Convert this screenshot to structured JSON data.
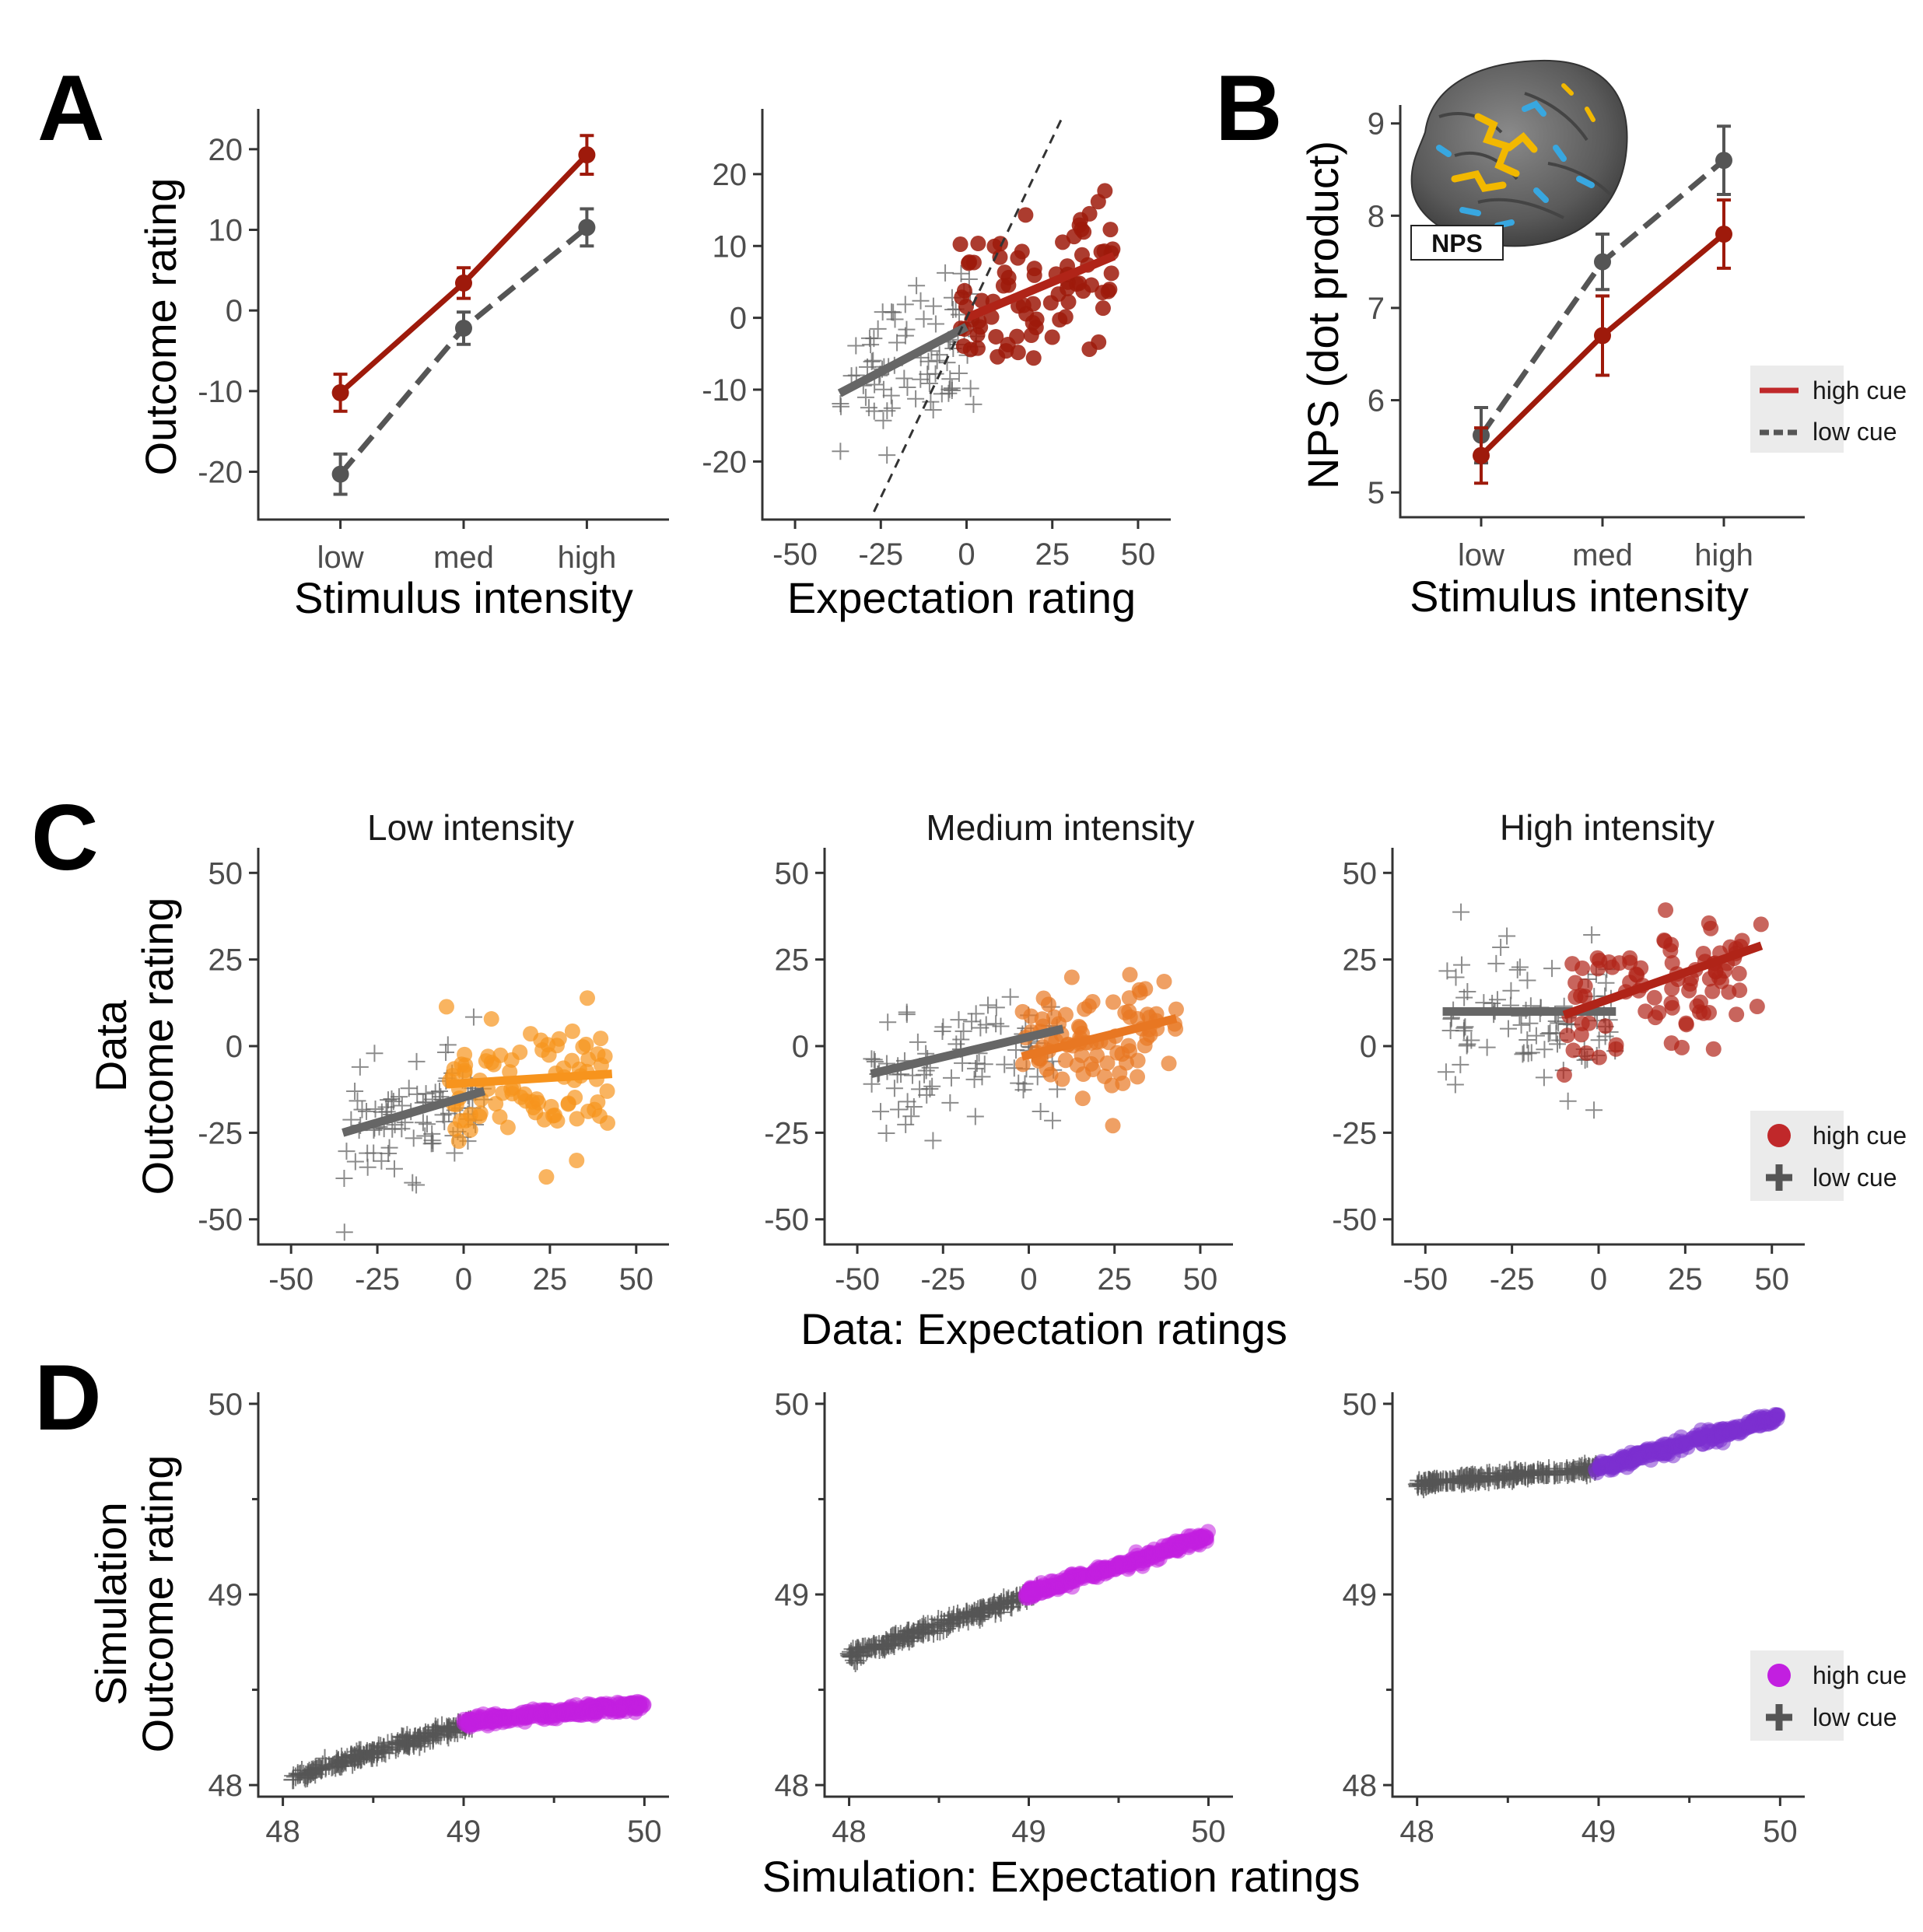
{
  "figure": {
    "letters": [
      "A",
      "B",
      "C",
      "D"
    ],
    "inset_label": "NPS"
  },
  "colors": {
    "high_cue_line": "#9e1a0b",
    "low_cue": "#555555",
    "orange": "#f7941d",
    "dark_orange": "#e87722",
    "red": "#b02418",
    "purple": "#c21fe0",
    "violet": "#7b2fd0",
    "legend_red": "#c0282a"
  },
  "legend": {
    "high_cue": "high cue",
    "low_cue": "low cue"
  },
  "chart_data": [
    {
      "id": "A1",
      "type": "line",
      "xlabel": "Stimulus intensity",
      "ylabel": "Outcome rating",
      "categories": [
        "low",
        "med",
        "high"
      ],
      "ylim": [
        -24,
        25
      ],
      "yticks": [
        20,
        10,
        0,
        -10,
        -20
      ],
      "series": [
        {
          "values": [
            -10.2,
            3.4,
            19.3
          ],
          "err": [
            2.3,
            1.9,
            2.4
          ]
        },
        {
          "values": [
            -20.3,
            -2.2,
            10.3
          ],
          "err": [
            2.5,
            2.0,
            2.3
          ]
        }
      ]
    },
    {
      "id": "A2",
      "type": "scatter",
      "xlabel": "Expectation rating",
      "ylabel": "",
      "xlim": [
        -55,
        55
      ],
      "xticks": [
        -50,
        -25,
        0,
        25,
        50
      ],
      "ylim": [
        -27,
        28
      ],
      "yticks": [
        20,
        10,
        0,
        -10,
        -20
      ],
      "high_cue": {
        "x_range": [
          -2,
          43
        ],
        "center": [
          15,
          3
        ],
        "n": 85,
        "slope": 0.2,
        "sd": 5
      },
      "low_cue": {
        "x_range": [
          -37,
          3
        ],
        "center": [
          -15,
          -5
        ],
        "n": 85,
        "slope": 0.25,
        "sd": 5
      },
      "identity_line": [
        [
          -27,
          -27
        ],
        [
          28,
          28
        ]
      ]
    },
    {
      "id": "B",
      "type": "line",
      "xlabel": "Stimulus intensity",
      "ylabel": "NPS (dot product)",
      "categories": [
        "low",
        "med",
        "high"
      ],
      "ylim": [
        4.9,
        9.2
      ],
      "yticks": [
        9,
        8,
        7,
        6,
        5
      ],
      "series": [
        {
          "name": "high cue",
          "values": [
            5.4,
            6.7,
            7.8
          ],
          "err": [
            0.3,
            0.43,
            0.37
          ]
        },
        {
          "name": "low cue",
          "values": [
            5.62,
            7.5,
            8.6
          ],
          "err": [
            0.3,
            0.3,
            0.37
          ]
        }
      ]
    },
    {
      "id": "C1",
      "type": "scatter",
      "title": "Low intensity",
      "ylabel": "Outcome rating",
      "row_label": "Data",
      "xlim": [
        -55,
        55
      ],
      "xticks": [
        -50,
        -25,
        0,
        25,
        50
      ],
      "ylim": [
        -55,
        55
      ],
      "yticks": [
        50,
        25,
        0,
        -25,
        -50
      ],
      "high_cue": {
        "x_range": [
          -5,
          43
        ],
        "center": [
          18,
          -12
        ],
        "n": 90,
        "slope": 0.05,
        "sd": 9
      },
      "low_cue": {
        "x_range": [
          -35,
          6
        ],
        "center": [
          -15,
          -20
        ],
        "n": 90,
        "slope": 0.3,
        "sd": 8
      },
      "fit_high": [
        [
          -5,
          -11
        ],
        [
          43,
          -8
        ]
      ],
      "fit_low": [
        [
          -35,
          -25
        ],
        [
          6,
          -13
        ]
      ]
    },
    {
      "id": "C2",
      "type": "scatter",
      "title": "Medium intensity",
      "xlim": [
        -55,
        55
      ],
      "xticks": [
        -50,
        -25,
        0,
        25,
        50
      ],
      "ylim": [
        -55,
        55
      ],
      "yticks": [
        50,
        25,
        0,
        -25,
        -50
      ],
      "high_cue": {
        "x_range": [
          -2,
          43
        ],
        "center": [
          20,
          2
        ],
        "n": 90,
        "slope": 0.15,
        "sd": 9
      },
      "low_cue": {
        "x_range": [
          -46,
          10
        ],
        "center": [
          -18,
          -6
        ],
        "n": 90,
        "slope": 0.2,
        "sd": 8
      },
      "fit_high": [
        [
          -2,
          -3
        ],
        [
          43,
          8
        ]
      ],
      "fit_low": [
        [
          -46,
          -8
        ],
        [
          10,
          5
        ]
      ]
    },
    {
      "id": "C3",
      "type": "scatter",
      "title": "High intensity",
      "xlim": [
        -55,
        55
      ],
      "xticks": [
        -50,
        -25,
        0,
        25,
        50
      ],
      "ylim": [
        -55,
        55
      ],
      "yticks": [
        50,
        25,
        0,
        -25,
        -50
      ],
      "high_cue": {
        "x_range": [
          -10,
          47
        ],
        "center": [
          20,
          17
        ],
        "n": 90,
        "slope": 0.3,
        "sd": 9
      },
      "low_cue": {
        "x_range": [
          -45,
          5
        ],
        "center": [
          -15,
          8
        ],
        "n": 90,
        "slope": 0.0,
        "sd": 10
      },
      "fit_high": [
        [
          -10,
          9
        ],
        [
          47,
          29
        ]
      ],
      "fit_low": [
        [
          -45,
          10
        ],
        [
          5,
          10
        ]
      ]
    },
    {
      "id": "D1",
      "type": "scatter",
      "ylabel": "Outcome rating",
      "row_label": "Simulation",
      "xlim": [
        47.95,
        50.05
      ],
      "xticks": [
        48,
        49,
        50
      ],
      "ylim": [
        47.98,
        50.02
      ],
      "yticks": [
        50,
        49,
        48
      ],
      "high_cue": {
        "x_range": [
          49.0,
          50.0
        ],
        "n": 260,
        "line": [
          [
            49.0,
            48.33
          ],
          [
            50.0,
            48.42
          ]
        ],
        "sd": 0.015
      },
      "low_cue": {
        "x_range": [
          48.05,
          49.05
        ],
        "n": 260,
        "line": [
          [
            48.05,
            48.04
          ],
          [
            49.05,
            48.33
          ]
        ],
        "sd": 0.015
      }
    },
    {
      "id": "D2",
      "type": "scatter",
      "xlim": [
        47.95,
        50.05
      ],
      "xticks": [
        48,
        49,
        50
      ],
      "ylim": [
        47.98,
        50.02
      ],
      "yticks": [
        50,
        49,
        48
      ],
      "high_cue": {
        "x_range": [
          48.98,
          50.0
        ],
        "n": 260,
        "line": [
          [
            48.98,
            49.0
          ],
          [
            50.0,
            49.3
          ]
        ],
        "sd": 0.015
      },
      "low_cue": {
        "x_range": [
          48.0,
          49.05
        ],
        "n": 260,
        "line": [
          [
            48.0,
            48.68
          ],
          [
            49.05,
            49.01
          ]
        ],
        "sd": 0.015
      }
    },
    {
      "id": "D3",
      "type": "scatter",
      "xlim": [
        47.95,
        50.05
      ],
      "xticks": [
        48,
        49,
        50
      ],
      "ylim": [
        47.98,
        50.02
      ],
      "yticks": [
        50,
        49,
        48
      ],
      "high_cue": {
        "x_range": [
          48.98,
          50.0
        ],
        "n": 260,
        "line": [
          [
            48.98,
            49.66
          ],
          [
            50.0,
            49.93
          ]
        ],
        "sd": 0.015
      },
      "low_cue": {
        "x_range": [
          48.0,
          49.0
        ],
        "n": 260,
        "line": [
          [
            48.0,
            49.58
          ],
          [
            49.0,
            49.66
          ]
        ],
        "sd": 0.012
      }
    }
  ],
  "shared_labels": {
    "C_xlabel": "Data: Expectation ratings",
    "D_xlabel": "Simulation: Expectation ratings"
  }
}
